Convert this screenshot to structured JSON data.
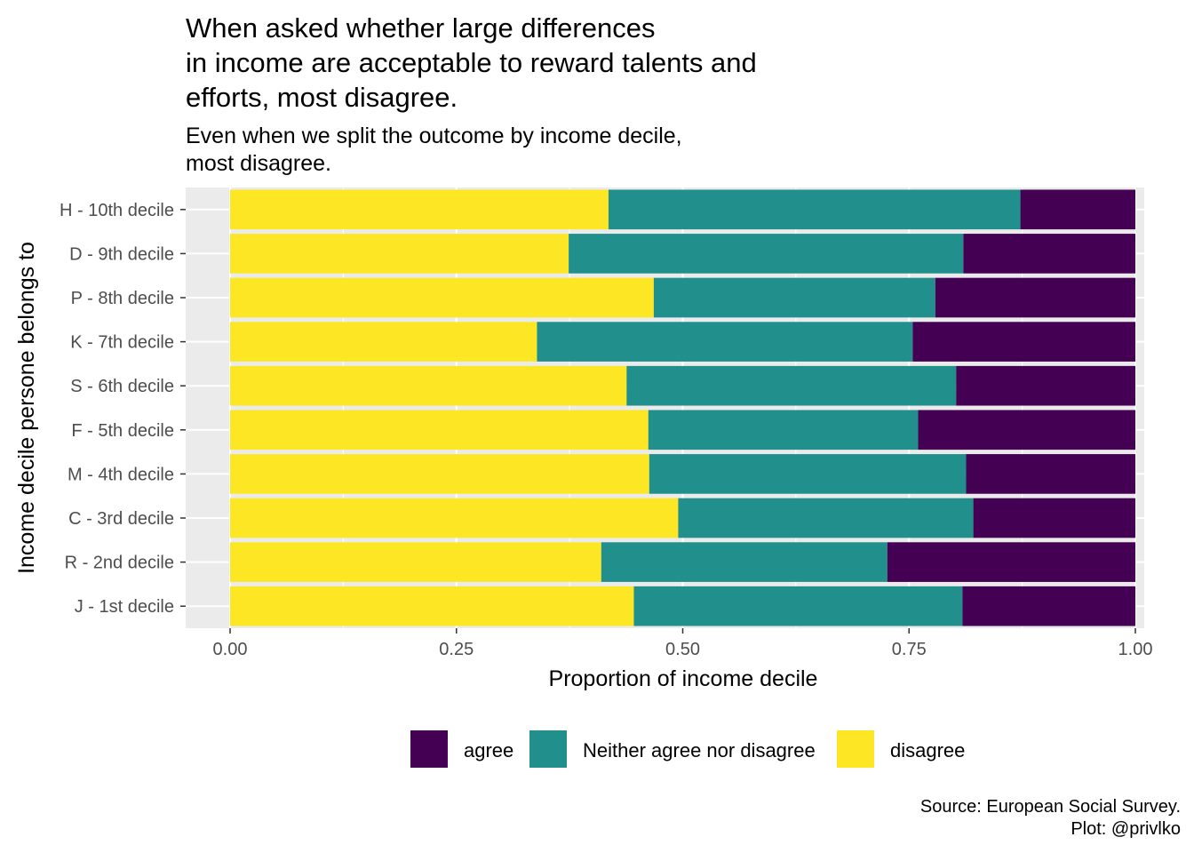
{
  "chart_data": {
    "type": "bar",
    "orientation": "horizontal",
    "stacked": true,
    "title_lines": [
      "When asked whether large differences",
      "in income are acceptable to reward talents and",
      "efforts, most disagree."
    ],
    "subtitle_lines": [
      "Even when we split the outcome by income decile,",
      "most disagree."
    ],
    "xlabel": "Proportion of income decile",
    "ylabel": "Income decile persone belongs to",
    "xlim": [
      0,
      1
    ],
    "x_ticks": [
      "0.00",
      "0.25",
      "0.50",
      "0.75",
      "1.00"
    ],
    "x_tick_values": [
      0,
      0.25,
      0.5,
      0.75,
      1.0
    ],
    "grid": true,
    "legend_position": "bottom",
    "categories": [
      "H - 10th decile",
      "D - 9th decile",
      "P - 8th decile",
      "K - 7th decile",
      "S - 6th decile",
      "F - 5th decile",
      "M - 4th decile",
      "C - 3rd decile",
      "R - 2nd decile",
      "J - 1st decile"
    ],
    "series": [
      {
        "name": "disagree",
        "color": "#FDE725",
        "values": [
          0.418,
          0.374,
          0.468,
          0.339,
          0.438,
          0.462,
          0.463,
          0.495,
          0.41,
          0.446
        ]
      },
      {
        "name": "Neither agree nor disagree",
        "color": "#21908C",
        "values": [
          0.455,
          0.436,
          0.311,
          0.415,
          0.364,
          0.298,
          0.35,
          0.326,
          0.316,
          0.363
        ]
      },
      {
        "name": "agree",
        "color": "#440154",
        "values": [
          0.127,
          0.19,
          0.221,
          0.246,
          0.198,
          0.24,
          0.187,
          0.179,
          0.274,
          0.191
        ]
      }
    ],
    "legend_order": [
      "agree",
      "Neither agree nor disagree",
      "disagree"
    ],
    "caption_lines": [
      "Source: European Social Survey.",
      "Plot: @privlko"
    ]
  }
}
